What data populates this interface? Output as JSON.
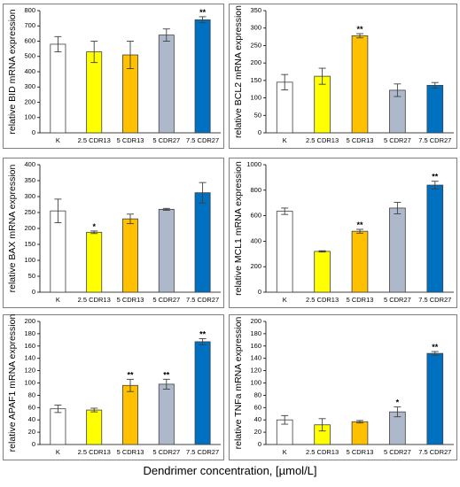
{
  "xaxis_title": "Dendrimer concentration, [µmol/L]",
  "colors": {
    "K": "#ffffff",
    "2.5 CDR13": "#ffff00",
    "5 CDR13": "#ffc000",
    "5 CDR27": "#adb9ca",
    "7.5 CDR27": "#0070c0",
    "frame": "#7f7f7f",
    "error_bar": "#404040"
  },
  "chart_data": [
    {
      "type": "bar",
      "ylabel": "relative BID mRNA expression",
      "categories": [
        "K",
        "2.5 CDR13",
        "5 CDR13",
        "5 CDR27",
        "7.5 CDR27"
      ],
      "values": [
        580,
        530,
        510,
        640,
        740
      ],
      "errors": [
        50,
        70,
        90,
        40,
        20
      ],
      "annotations": [
        "",
        "",
        "",
        "",
        "**"
      ],
      "ylim": [
        0,
        800
      ],
      "yticks": [
        0,
        100,
        200,
        300,
        400,
        500,
        600,
        700,
        800
      ],
      "grid": false
    },
    {
      "type": "bar",
      "ylabel": "relative BCL2 mRNA expression",
      "categories": [
        "K",
        "2.5 CDR13",
        "5 CDR13",
        "5 CDR27",
        "7.5 CDR27"
      ],
      "values": [
        145,
        162,
        278,
        122,
        136
      ],
      "errors": [
        22,
        23,
        6,
        18,
        8
      ],
      "annotations": [
        "",
        "",
        "**",
        "",
        ""
      ],
      "ylim": [
        0,
        350
      ],
      "yticks": [
        0,
        50,
        100,
        150,
        200,
        250,
        300,
        350
      ],
      "grid": false
    },
    {
      "type": "bar",
      "ylabel": "relative BAX mRNA expression",
      "categories": [
        "K",
        "2.5 CDR13",
        "5 CDR13",
        "5 CDR27",
        "7.5 CDR27"
      ],
      "values": [
        255,
        188,
        230,
        260,
        312
      ],
      "errors": [
        37,
        4,
        15,
        3,
        32
      ],
      "annotations": [
        "",
        "*",
        "",
        "",
        ""
      ],
      "ylim": [
        0,
        400
      ],
      "yticks": [
        0,
        50,
        100,
        150,
        200,
        250,
        300,
        350,
        400
      ],
      "grid": false
    },
    {
      "type": "bar",
      "ylabel": "relative MCL1 mRNA expression",
      "categories": [
        "K",
        "2.5 CDR13",
        "5 CDR13",
        "5 CDR27",
        "7.5 CDR27"
      ],
      "values": [
        635,
        320,
        478,
        660,
        840
      ],
      "errors": [
        25,
        5,
        15,
        45,
        30
      ],
      "annotations": [
        "",
        "",
        "**",
        "",
        "**"
      ],
      "ylim": [
        0,
        1000
      ],
      "yticks": [
        0,
        200,
        400,
        600,
        800,
        1000
      ],
      "grid": false
    },
    {
      "type": "bar",
      "ylabel": "relative APAF1 mRNA expression",
      "categories": [
        "K",
        "2.5 CDR13",
        "5 CDR13",
        "5 CDR27",
        "7.5 CDR27"
      ],
      "values": [
        58,
        56,
        96,
        98,
        167
      ],
      "errors": [
        6,
        3,
        10,
        8,
        5
      ],
      "annotations": [
        "",
        "",
        "**",
        "**",
        "**"
      ],
      "ylim": [
        0,
        200
      ],
      "yticks": [
        0,
        20,
        40,
        60,
        80,
        100,
        120,
        140,
        160,
        180,
        200
      ],
      "grid": false
    },
    {
      "type": "bar",
      "ylabel": "relative TNFa mRNA expression",
      "categories": [
        "K",
        "2.5 CDR13",
        "5 CDR13",
        "5 CDR27",
        "7.5 CDR27"
      ],
      "values": [
        40,
        32,
        37,
        53,
        148
      ],
      "errors": [
        7,
        10,
        2,
        8,
        3
      ],
      "annotations": [
        "",
        "",
        "",
        "*",
        "**"
      ],
      "ylim": [
        0,
        200
      ],
      "yticks": [
        0,
        20,
        40,
        60,
        80,
        100,
        120,
        140,
        160,
        180,
        200
      ],
      "grid": false
    }
  ]
}
